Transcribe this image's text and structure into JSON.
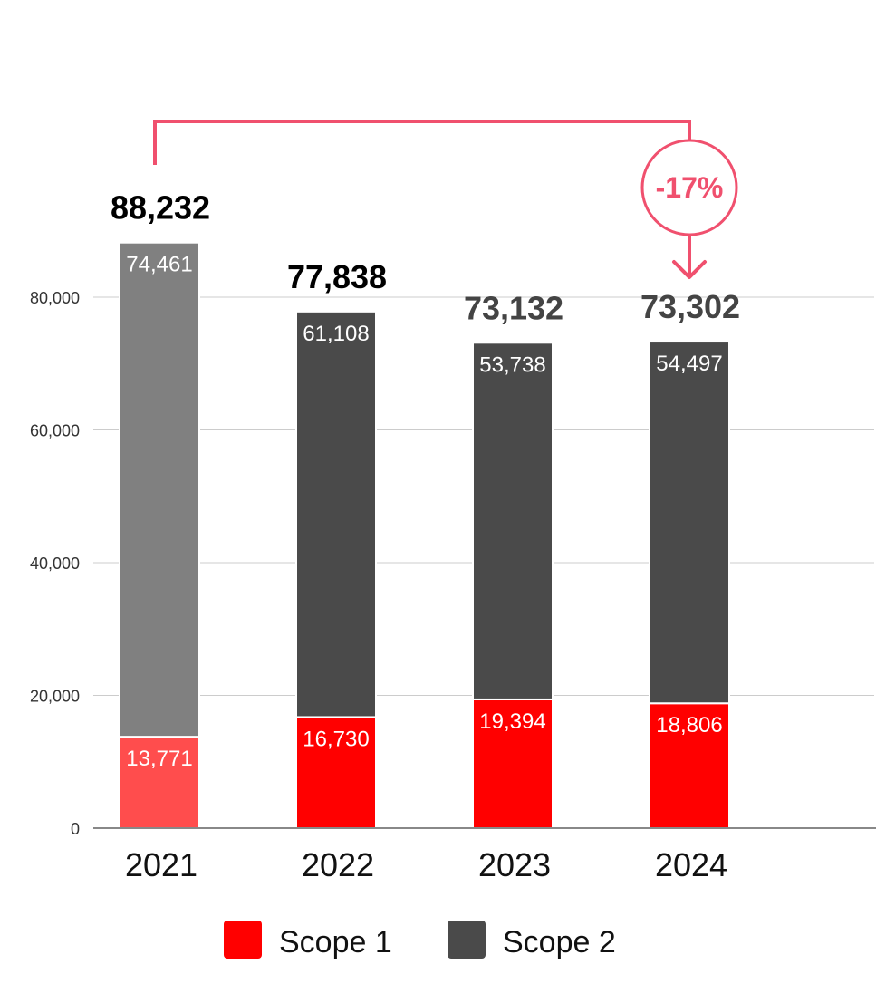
{
  "chart_data": {
    "type": "bar",
    "stacked": true,
    "categories": [
      "2021",
      "2022",
      "2023",
      "2024"
    ],
    "series": [
      {
        "name": "Scope 1",
        "values": [
          13771,
          16730,
          19394,
          18806
        ]
      },
      {
        "name": "Scope 2",
        "values": [
          74461,
          61108,
          53738,
          54497
        ]
      }
    ],
    "value_labels": {
      "Scope 1": [
        "13,771",
        "16,730",
        "19,394",
        "18,806"
      ],
      "Scope 2": [
        "74,461",
        "61,108",
        "53,738",
        "54,497"
      ]
    },
    "totals": [
      88232,
      77838,
      73132,
      73302
    ],
    "total_labels": [
      "88,232",
      "77,838",
      "73,132",
      "73,302"
    ],
    "yticks": [
      0,
      20000,
      40000,
      60000,
      80000
    ],
    "ytick_labels": [
      "0",
      "20,000",
      "40,000",
      "60,000",
      "80,000"
    ],
    "ylim": [
      0,
      80000
    ],
    "grid": true,
    "legend_position": "bottom",
    "annotation": {
      "text": "-17%",
      "from": "2021",
      "to": "2024"
    },
    "colors": {
      "scope1": "#ff0000",
      "scope1_highlight": "#ff4d4d",
      "scope2": "#4a4a4a",
      "scope2_highlight": "#808080",
      "annotation": "#f0506e",
      "total_dark": "#000000",
      "total_muted": "#444444"
    }
  }
}
